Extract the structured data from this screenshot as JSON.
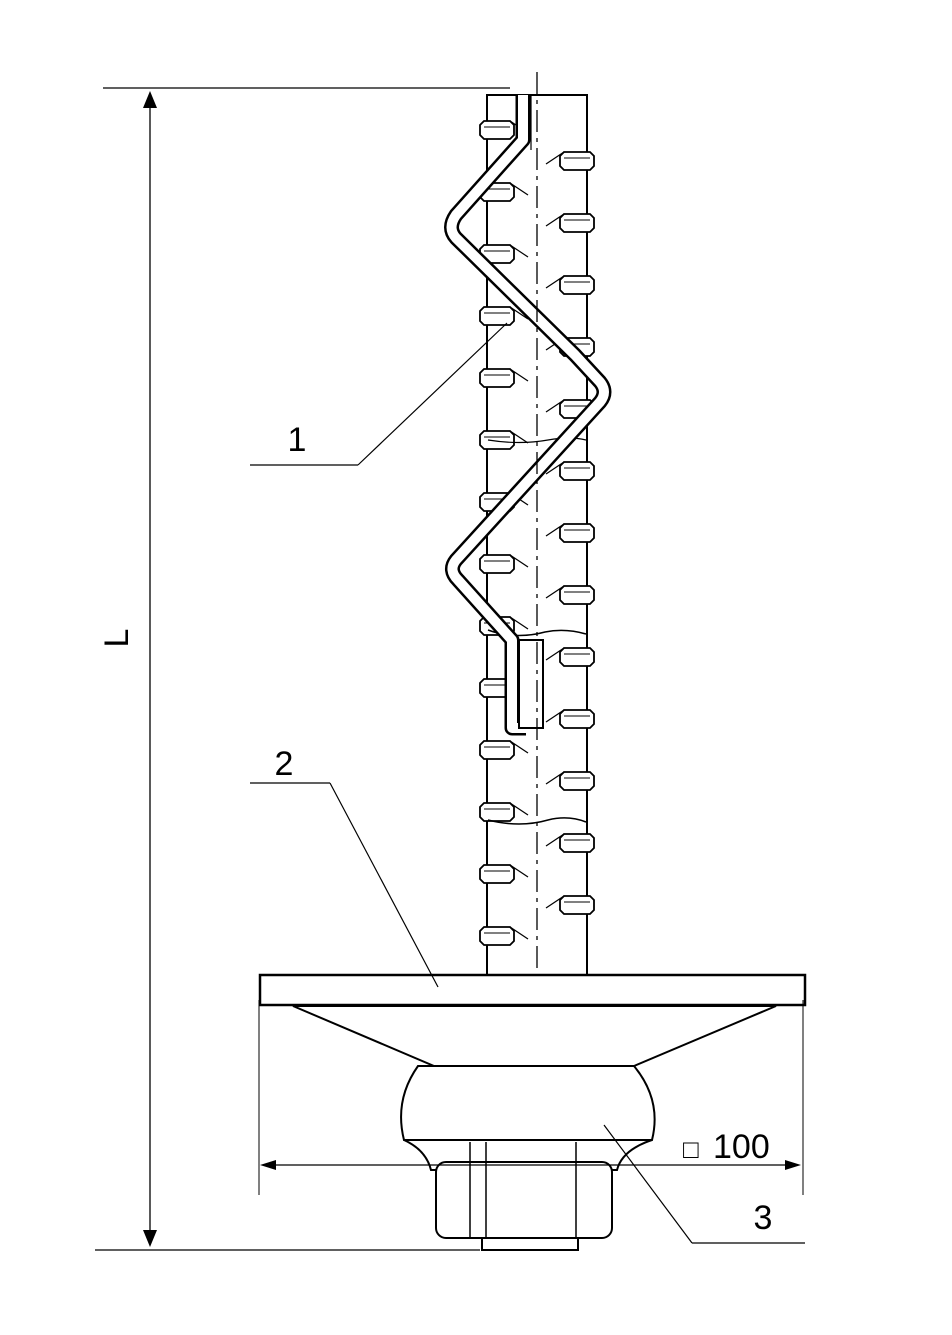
{
  "labels": {
    "part_1": "1",
    "part_2": "2",
    "part_3": "3",
    "length": "L",
    "plate_size_symbol": "□",
    "plate_size": "100"
  }
}
